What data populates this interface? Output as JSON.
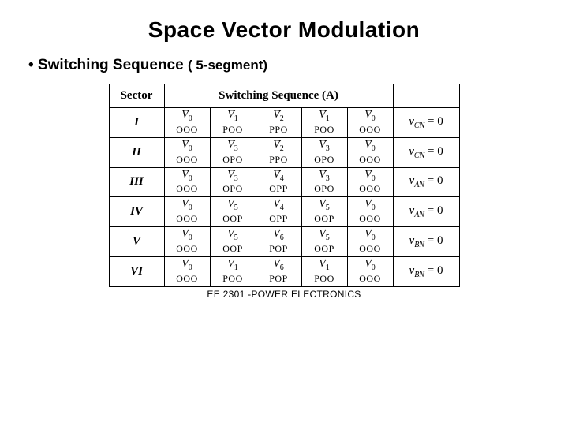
{
  "title": "Space Vector Modulation",
  "subtitle_prefix": "• Switching Sequence ",
  "subtitle_paren": "( 5-segment)",
  "header_sector": "Sector",
  "header_seq": "Switching Sequence (A)",
  "footer": "EE 2301 -POWER ELECTRONICS",
  "sectors": [
    {
      "name": "I",
      "vectors": [
        "V0",
        "V1",
        "V2",
        "V1",
        "V0"
      ],
      "codes": [
        "OOO",
        "POO",
        "PPO",
        "POO",
        "OOO"
      ],
      "eq_sub": "CN"
    },
    {
      "name": "II",
      "vectors": [
        "V0",
        "V3",
        "V2",
        "V3",
        "V0"
      ],
      "codes": [
        "OOO",
        "OPO",
        "PPO",
        "OPO",
        "OOO"
      ],
      "eq_sub": "CN"
    },
    {
      "name": "III",
      "vectors": [
        "V0",
        "V3",
        "V4",
        "V3",
        "V0"
      ],
      "codes": [
        "OOO",
        "OPO",
        "OPP",
        "OPO",
        "OOO"
      ],
      "eq_sub": "AN"
    },
    {
      "name": "IV",
      "vectors": [
        "V0",
        "V5",
        "V4",
        "V5",
        "V0"
      ],
      "codes": [
        "OOO",
        "OOP",
        "OPP",
        "OOP",
        "OOO"
      ],
      "eq_sub": "AN"
    },
    {
      "name": "V",
      "vectors": [
        "V0",
        "V5",
        "V6",
        "V5",
        "V0"
      ],
      "codes": [
        "OOO",
        "OOP",
        "POP",
        "OOP",
        "OOO"
      ],
      "eq_sub": "BN"
    },
    {
      "name": "VI",
      "vectors": [
        "V0",
        "V1",
        "V6",
        "V1",
        "V0"
      ],
      "codes": [
        "OOO",
        "POO",
        "POP",
        "POO",
        "OOO"
      ],
      "eq_sub": "BN"
    }
  ],
  "colors": {
    "bg": "#ffffff",
    "text": "#000000",
    "border": "#000000"
  }
}
